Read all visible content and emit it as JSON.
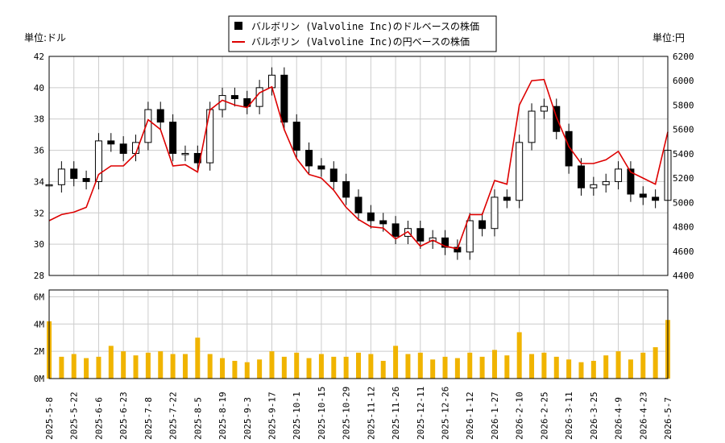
{
  "legend": {
    "usd_label": "バルボリン (Valvoline Inc)のドルベースの株価",
    "jpy_label": "バルボリン (Valvoline Inc)の円ベースの株価"
  },
  "axes": {
    "left_unit": "単位:ドル",
    "right_unit": "単位:円"
  },
  "colors": {
    "usd": "#000000",
    "jpy": "#dd0000",
    "volume": "#f0b400",
    "grid": "#cccccc"
  },
  "chart_data": [
    {
      "type": "line",
      "title": "",
      "x_ticks": [
        "2025-5-8",
        "2025-5-22",
        "2025-6-6",
        "2025-6-23",
        "2025-7-8",
        "2025-7-22",
        "2025-8-5",
        "2025-8-19",
        "2025-9-3",
        "2025-9-17",
        "2025-10-1",
        "2025-10-15",
        "2025-10-29",
        "2025-11-12",
        "2025-11-26",
        "2025-12-11",
        "2025-12-26",
        "2026-1-12",
        "2026-1-27",
        "2026-2-10",
        "2026-2-25",
        "2026-3-11",
        "2026-3-25",
        "2026-4-9",
        "2026-4-23",
        "2026-5-7"
      ],
      "y_left_ticks": [
        "28",
        "30",
        "32",
        "34",
        "36",
        "38",
        "40",
        "42"
      ],
      "y_right_ticks": [
        "4400",
        "4600",
        "4800",
        "5000",
        "5200",
        "5400",
        "5600",
        "5800",
        "6000",
        "6200"
      ],
      "ylim_left": [
        28,
        42
      ],
      "ylim_right": [
        4400,
        6200
      ],
      "grid": true,
      "legend_position": "top-center",
      "series": [
        {
          "name": "バルボリン (Valvoline Inc)のドルベースの株価",
          "style": "candlestick",
          "x": [
            "2025-5-8",
            "2025-5-15",
            "2025-5-22",
            "2025-5-29",
            "2025-6-6",
            "2025-6-13",
            "2025-6-23",
            "2025-6-30",
            "2025-7-8",
            "2025-7-15",
            "2025-7-22",
            "2025-7-29",
            "2025-8-5",
            "2025-8-12",
            "2025-8-19",
            "2025-8-26",
            "2025-9-3",
            "2025-9-10",
            "2025-9-17",
            "2025-9-24",
            "2025-10-1",
            "2025-10-8",
            "2025-10-15",
            "2025-10-22",
            "2025-10-29",
            "2025-11-5",
            "2025-11-12",
            "2025-11-19",
            "2025-11-26",
            "2025-12-4",
            "2025-12-11",
            "2025-12-18",
            "2025-12-26",
            "2026-1-5",
            "2026-1-12",
            "2026-1-20",
            "2026-1-27",
            "2026-2-3",
            "2026-2-10",
            "2026-2-17",
            "2026-2-25",
            "2026-3-4",
            "2026-3-11",
            "2026-3-18",
            "2026-3-25",
            "2026-4-2",
            "2026-4-9",
            "2026-4-16",
            "2026-4-23",
            "2026-4-30",
            "2026-5-7"
          ],
          "values": [
            33.8,
            34.8,
            34.2,
            34.0,
            36.6,
            36.4,
            35.8,
            36.5,
            38.6,
            37.8,
            35.8,
            35.8,
            35.2,
            38.6,
            39.5,
            39.3,
            38.8,
            40.0,
            40.8,
            37.8,
            36.0,
            35.0,
            34.8,
            34.0,
            33.0,
            32.0,
            31.5,
            31.3,
            30.5,
            31.0,
            30.2,
            30.4,
            29.8,
            29.5,
            31.5,
            31.0,
            33.0,
            32.8,
            36.5,
            38.5,
            38.8,
            37.2,
            35.0,
            33.6,
            33.8,
            34.0,
            34.8,
            33.2,
            33.0,
            32.8,
            36.0
          ]
        },
        {
          "name": "バルボリン (Valvoline Inc)の円ベースの株価",
          "style": "line",
          "x": [
            "2025-5-8",
            "2025-5-15",
            "2025-5-22",
            "2025-5-29",
            "2025-6-6",
            "2025-6-13",
            "2025-6-23",
            "2025-6-30",
            "2025-7-8",
            "2025-7-15",
            "2025-7-22",
            "2025-7-29",
            "2025-8-5",
            "2025-8-12",
            "2025-8-19",
            "2025-8-26",
            "2025-9-3",
            "2025-9-10",
            "2025-9-17",
            "2025-9-24",
            "2025-10-1",
            "2025-10-8",
            "2025-10-15",
            "2025-10-22",
            "2025-10-29",
            "2025-11-5",
            "2025-11-12",
            "2025-11-19",
            "2025-11-26",
            "2025-12-4",
            "2025-12-11",
            "2025-12-18",
            "2025-12-26",
            "2026-1-5",
            "2026-1-12",
            "2026-1-20",
            "2026-1-27",
            "2026-2-3",
            "2026-2-10",
            "2026-2-17",
            "2026-2-25",
            "2026-3-4",
            "2026-3-11",
            "2026-3-18",
            "2026-3-25",
            "2026-4-2",
            "2026-4-9",
            "2026-4-16",
            "2026-4-23",
            "2026-4-30",
            "2026-5-7"
          ],
          "values": [
            4850,
            4900,
            4920,
            4960,
            5230,
            5300,
            5300,
            5400,
            5680,
            5600,
            5300,
            5310,
            5250,
            5760,
            5840,
            5800,
            5780,
            5900,
            5950,
            5600,
            5360,
            5230,
            5200,
            5100,
            4960,
            4860,
            4800,
            4790,
            4700,
            4760,
            4640,
            4690,
            4640,
            4620,
            4900,
            4900,
            5180,
            5150,
            5800,
            6000,
            6010,
            5700,
            5460,
            5320,
            5320,
            5350,
            5420,
            5250,
            5200,
            5150,
            5580
          ]
        }
      ]
    },
    {
      "type": "bar",
      "title": "",
      "y_ticks": [
        "0M",
        "2M",
        "4M",
        "6M"
      ],
      "ylim": [
        0,
        6.5
      ],
      "series": [
        {
          "name": "",
          "values": [
            4.2,
            1.6,
            1.8,
            1.5,
            1.6,
            2.4,
            2.0,
            1.7,
            1.9,
            2.0,
            1.8,
            1.8,
            3.0,
            1.8,
            1.5,
            1.3,
            1.2,
            1.4,
            2.0,
            1.6,
            1.9,
            1.5,
            1.8,
            1.6,
            1.6,
            1.9,
            1.8,
            1.3,
            2.4,
            1.8,
            1.9,
            1.4,
            1.6,
            1.5,
            1.9,
            1.6,
            2.1,
            1.7,
            3.4,
            1.8,
            1.9,
            1.6,
            1.4,
            1.2,
            1.3,
            1.7,
            2.0,
            1.4,
            1.9,
            2.3,
            4.3
          ]
        }
      ]
    }
  ]
}
